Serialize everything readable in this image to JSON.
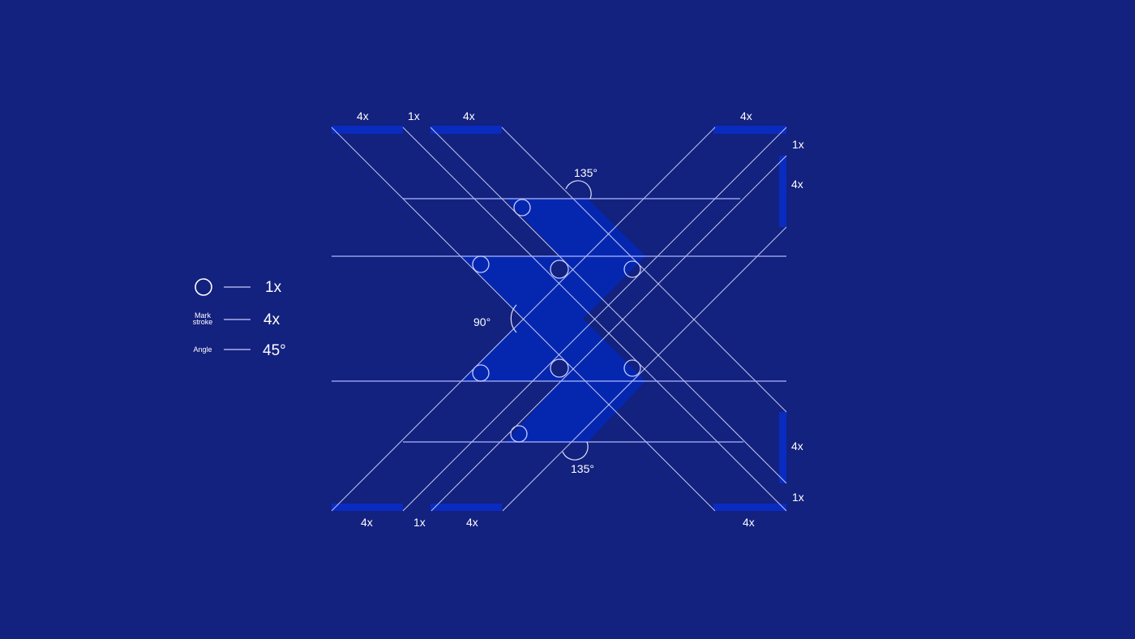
{
  "colors": {
    "background": "#13217f",
    "mark_fill": "#0527b0",
    "measure_bar": "#0a2bc0",
    "lines": "#dfe3ff"
  },
  "legend": [
    {
      "key_icon": "circle-icon",
      "value": "1x"
    },
    {
      "key_line1": "Mark",
      "key_line2": "stroke",
      "value": "4x"
    },
    {
      "key": "Angle",
      "value": "45°"
    }
  ],
  "measures": {
    "top": [
      "4x",
      "1x",
      "4x",
      "4x"
    ],
    "right": [
      "1x",
      "4x",
      "4x",
      "1x"
    ],
    "bottom": [
      "4x",
      "1x",
      "4x",
      "4x"
    ]
  },
  "angles": {
    "top": "135°",
    "left": "90°",
    "bottom": "135°"
  }
}
